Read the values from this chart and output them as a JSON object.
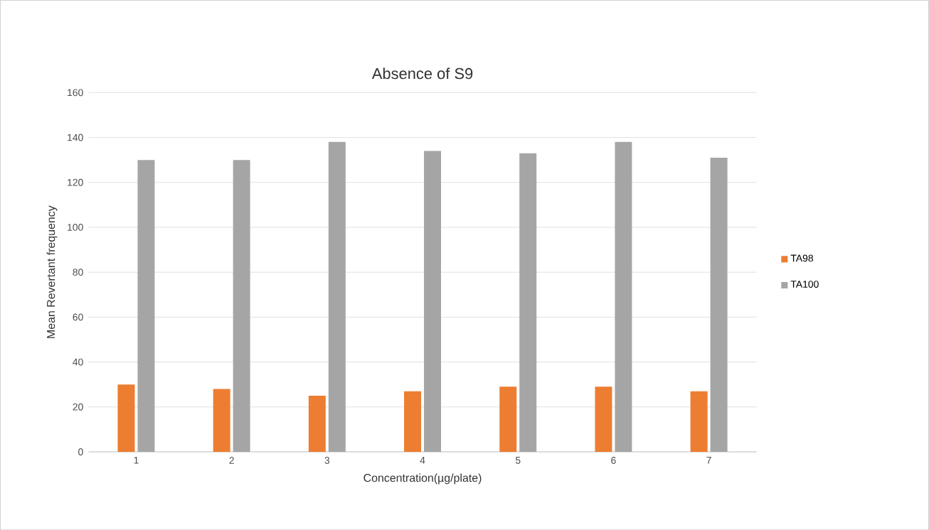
{
  "chart_data": {
    "type": "bar",
    "title": "Absence of S9",
    "xlabel": "Concentration(µg/plate)",
    "ylabel": "Mean Revertant frequency",
    "categories": [
      "1",
      "2",
      "3",
      "4",
      "5",
      "6",
      "7"
    ],
    "series": [
      {
        "name": "TA98",
        "color": "#ed7d31",
        "values": [
          30,
          28,
          25,
          27,
          29,
          29,
          27
        ]
      },
      {
        "name": "TA100",
        "color": "#a5a5a5",
        "values": [
          130,
          130,
          138,
          134,
          133,
          138,
          131
        ]
      }
    ],
    "ylim": [
      0,
      160
    ],
    "yticks": [
      0,
      20,
      40,
      60,
      80,
      100,
      120,
      140,
      160
    ],
    "grid": "y",
    "legend": "right"
  }
}
